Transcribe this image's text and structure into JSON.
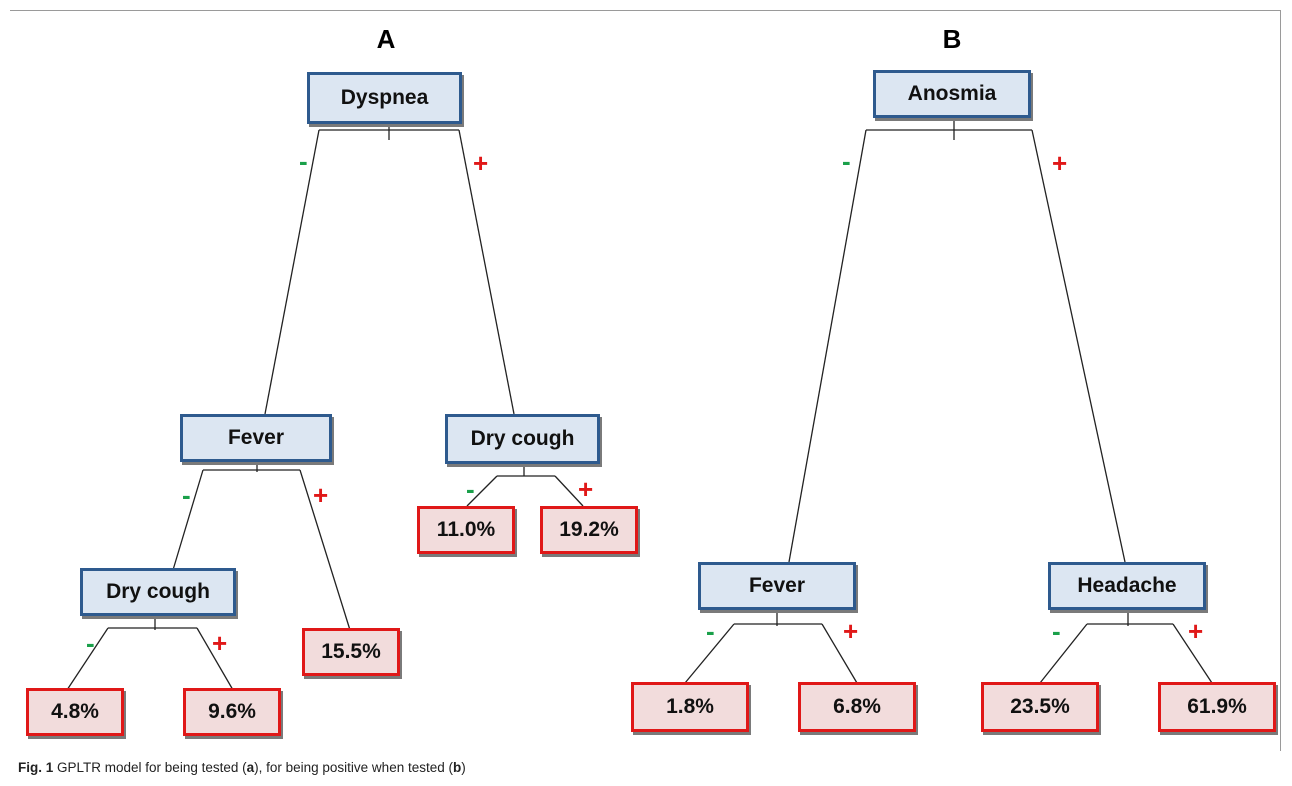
{
  "panels": [
    {
      "label": "A"
    },
    {
      "label": "B"
    }
  ],
  "nodes": {
    "a_root": "Dyspnea",
    "a_fever": "Fever",
    "a_drycough_right": "Dry cough",
    "a_drycough_left": "Dry cough",
    "b_root": "Anosmia",
    "b_fever": "Fever",
    "b_headache": "Headache"
  },
  "leaves": {
    "a_leaf_1": "4.8%",
    "a_leaf_2": "9.6%",
    "a_leaf_3": "15.5%",
    "a_leaf_4": "11.0%",
    "a_leaf_5": "19.2%",
    "b_leaf_1": "1.8%",
    "b_leaf_2": "6.8%",
    "b_leaf_3": "23.5%",
    "b_leaf_4": "61.9%"
  },
  "signs": {
    "negative": "-",
    "positive": "+"
  },
  "colors": {
    "node_fill": "#dce6f2",
    "node_border": "#2e5a8e",
    "leaf_fill": "#f2dcdc",
    "leaf_border": "#e01818",
    "negative": "#1aa04a",
    "positive": "#e01818"
  },
  "caption": {
    "figure_label": "Fig. 1",
    "text_1": " GPLTR model for being tested (",
    "a": "a",
    "text_2": "), for being positive when tested (",
    "b": "b",
    "text_3": ")"
  }
}
